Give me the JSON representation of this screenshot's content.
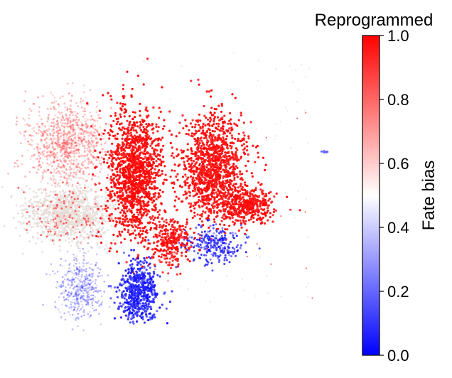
{
  "chart_data": {
    "type": "scatter",
    "title": "Reprogrammed",
    "xlabel": "",
    "ylabel": "",
    "colorbar": {
      "label": "Fate bias",
      "range": [
        0.0,
        1.0
      ],
      "ticks": [
        0.0,
        0.2,
        0.4,
        0.6,
        0.8,
        1.0
      ],
      "tick_labels": [
        "0.0",
        "0.2",
        "0.4",
        "0.6",
        "0.8",
        "1.0"
      ],
      "colormap": [
        "#0000ff",
        "#ffffff",
        "#ff0000"
      ]
    },
    "axes_visible": false,
    "grid": false,
    "clusters": [
      {
        "region": "upper-left lobe, top",
        "fate_bias": 0.85
      },
      {
        "region": "upper-left lobe, lower band",
        "fate_bias": 0.5
      },
      {
        "region": "lower-left branch",
        "fate_bias": 0.15
      },
      {
        "region": "central column",
        "fate_bias": 0.98
      },
      {
        "region": "central column base",
        "fate_bias": 0.08
      },
      {
        "region": "right lobe",
        "fate_bias": 0.97
      },
      {
        "region": "right lobe underside",
        "fate_bias": 0.1
      },
      {
        "region": "isolated right cluster",
        "fate_bias": 0.2
      }
    ]
  },
  "colors": {
    "low": "#0000ff",
    "mid": "#ffffff",
    "high": "#ff0000",
    "neutral_cells": "#e6ddd8"
  }
}
